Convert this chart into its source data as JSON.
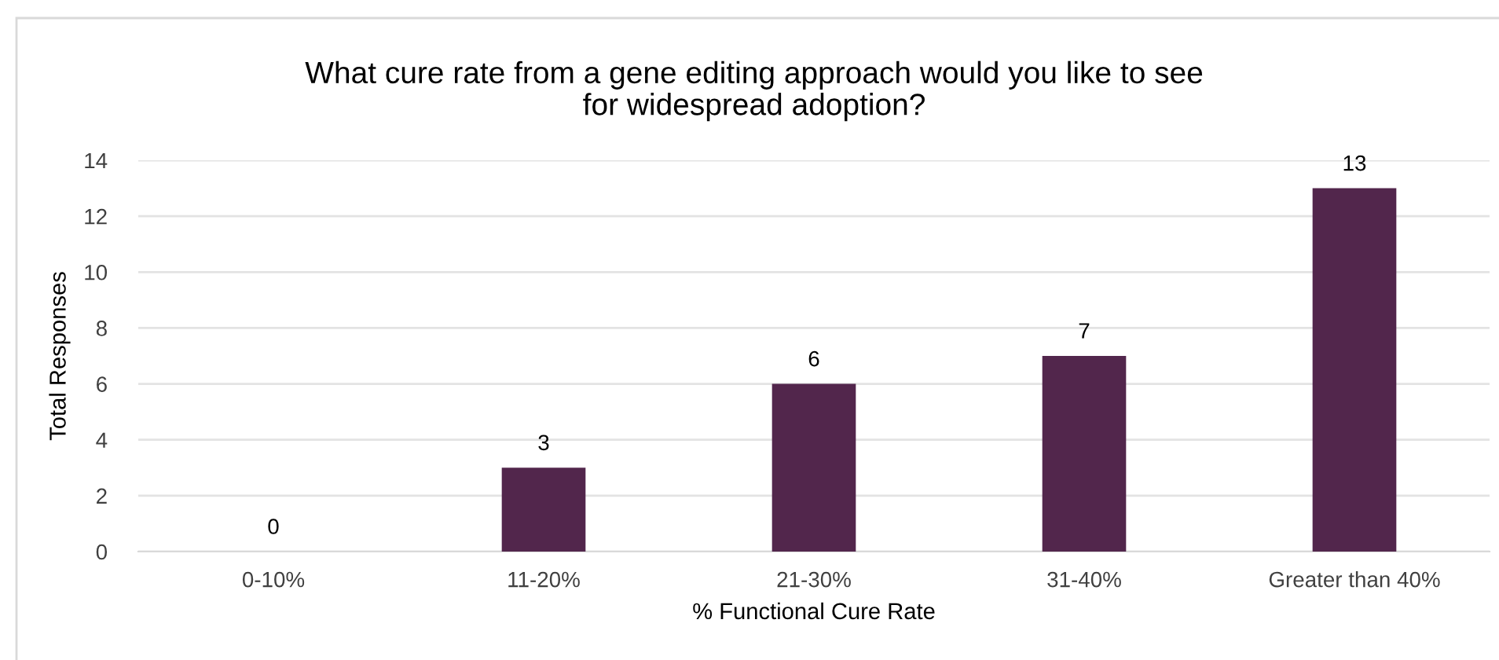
{
  "chart_data": {
    "type": "bar",
    "title": "What cure rate from a gene editing approach would you like to see\nfor widespread adoption?",
    "xlabel": "% Functional Cure Rate",
    "ylabel": "Total Responses",
    "categories": [
      "0-10%",
      "11-20%",
      "21-30%",
      "31-40%",
      "Greater than 40%"
    ],
    "values": [
      0,
      3,
      6,
      7,
      13
    ],
    "color": "#52264c",
    "ylim": [
      0,
      14
    ],
    "yticks": [
      0,
      2,
      4,
      6,
      8,
      10,
      12,
      14
    ],
    "grid": "y",
    "data_labels": true,
    "legend": false
  }
}
